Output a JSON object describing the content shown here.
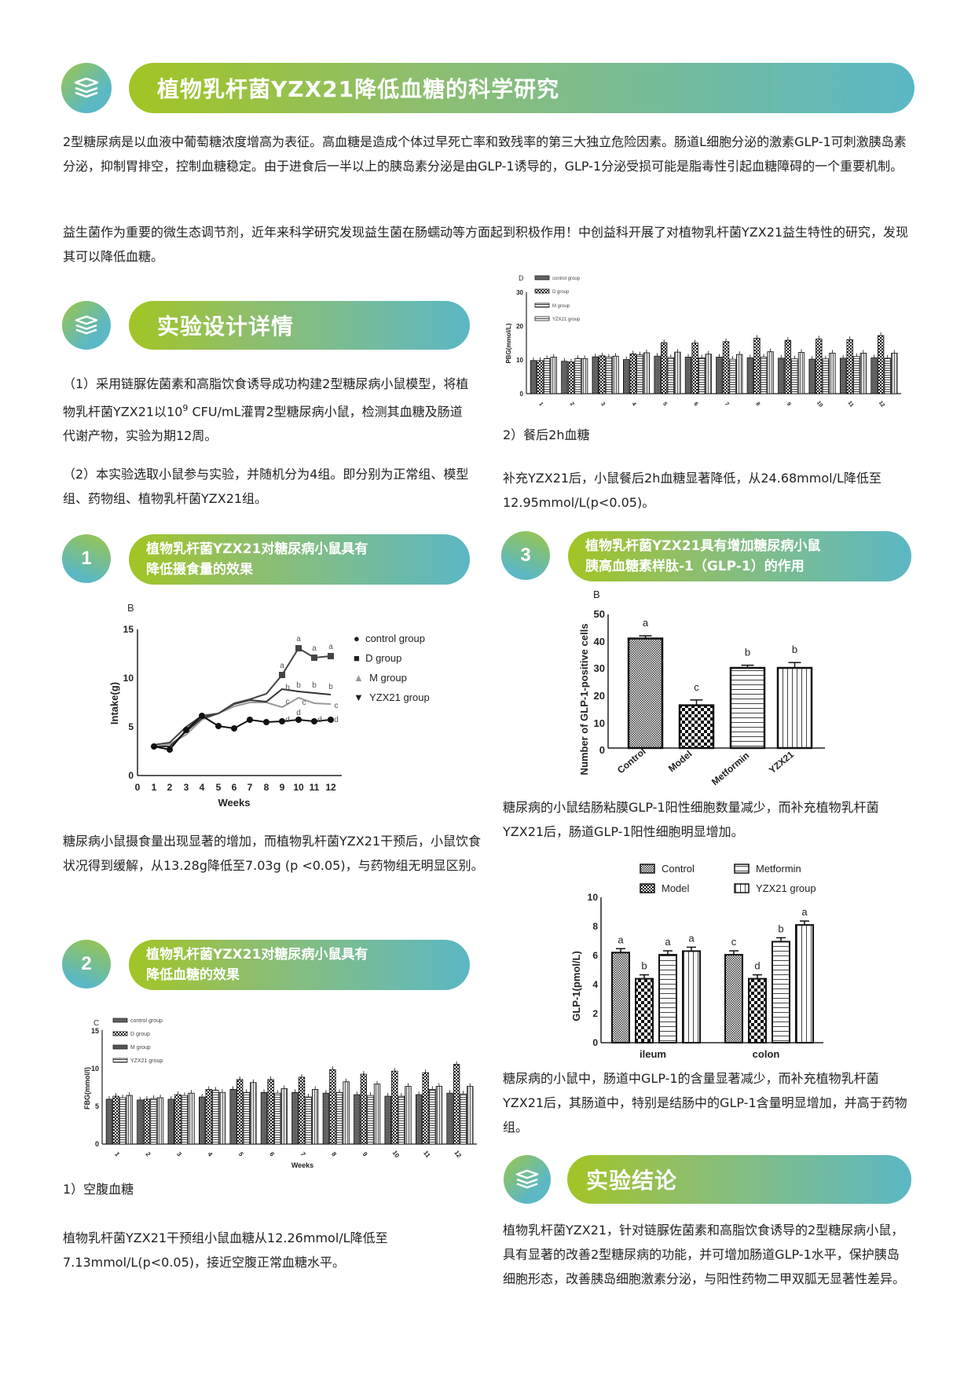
{
  "header": {
    "title": "植物乳杆菌YZX21降低血糖的科学研究",
    "icon": "books-icon"
  },
  "intro": {
    "paragraph1": "2型糖尿病是以血液中葡萄糖浓度增高为表征。高血糖是造成个体过早死亡率和致残率的第三大独立危险因素。肠道L细胞分泌的激素GLP-1可刺激胰岛素分泌，抑制胃排空，控制血糖稳定。由于进食后一半以上的胰岛素分泌是由GLP-1诱导的，GLP-1分泌受损可能是脂毒性引起血糖障碍的一个重要机制。",
    "paragraph2": "益生菌作为重要的微生态调节剂，近年来科学研究发现益生菌在肠蠕动等方面起到积极作用！中创益科开展了对植物乳杆菌YZX21益生特性的研究，发现其可以降低血糖。"
  },
  "design": {
    "title": "实验设计详情",
    "item1_a": "（1）采用链脲佐菌素和高脂饮食诱导成功构建2型糖尿病小鼠模型，将植物乳杆菌YZX21以10",
    "item1_sup": "9",
    "item1_b": " CFU/mL灌胃2型糖尿病小鼠，检测其血糖及肠道代谢产物，实验为期12周。",
    "item2": "（2）本实验选取小鼠参与实验，并随机分为4组。即分别为正常组、模型组、药物组、植物乳杆菌YZX21组。"
  },
  "section1": {
    "number": "1",
    "title_line1": "植物乳杆菌YZX21对糖尿病小鼠具有",
    "title_line2": "降低摄食量的效果",
    "text": "糖尿病小鼠摄食量出现显著的增加，而植物乳杆菌YZX21干预后，小鼠饮食状况得到缓解，从13.28g降低至7.03g (p <0.05)，与药物组无明显区别。"
  },
  "section2": {
    "number": "2",
    "title_line1": "植物乳杆菌YZX21对糖尿病小鼠具有",
    "title_line2": "降低血糖的效果",
    "caption": "1）空腹血糖",
    "text": "植物乳杆菌YZX21干预组小鼠血糖从12.26mmol/L降低至7.13mmol/L(p<0.05)，接近空腹正常血糖水平。"
  },
  "pbg": {
    "caption": "2）餐后2h血糖",
    "text": "补充YZX21后，小鼠餐后2h血糖显著降低，从24.68mmol/L降低至12.95mmol/L(p<0.05)。"
  },
  "section3": {
    "number": "3",
    "title_line1": "植物乳杆菌YZX21具有增加糖尿病小鼠",
    "title_line2": "胰高血糖素样肽-1（GLP-1）的作用",
    "text1": "糖尿病的小鼠结肠粘膜GLP-1阳性细胞数量减少，而补充植物乳杆菌YZX21后，肠道GLP-1阳性细胞明显增加。",
    "text2": "糖尿病的小鼠中，肠道中GLP-1的含量显著减少，而补充植物乳杆菌YZX21后，其肠道中，特别是结肠中的GLP-1含量明显增加，并高于药物组。"
  },
  "conclusion": {
    "title": "实验结论",
    "text": "植物乳杆菌YZX21，针对链脲佐菌素和高脂饮食诱导的2型糖尿病小鼠，具有显著的改善2型糖尿病的功能，并可增加肠道GLP-1水平，保护胰岛细胞形态，改善胰岛细胞激素分泌，与阳性药物二甲双胍无显著性差异。"
  },
  "colors": {
    "gradient_start": "#a2c523",
    "gradient_end": "#5bb7c5"
  },
  "chart_data": [
    {
      "id": "intake",
      "type": "line",
      "panel_label": "B",
      "xlabel": "Weeks",
      "ylabel": "Intake(g)",
      "ylim": [
        0,
        15
      ],
      "yticks": [
        0,
        5,
        10,
        15
      ],
      "x": [
        1,
        2,
        3,
        4,
        5,
        6,
        7,
        8,
        9,
        10,
        11,
        12
      ],
      "series": [
        {
          "name": "control group",
          "values": [
            3.0,
            2.7,
            4.7,
            6.1,
            5.1,
            4.8,
            5.7,
            5.5,
            5.6,
            5.7,
            5.6,
            5.7
          ]
        },
        {
          "name": "D group",
          "values": [
            3.2,
            3.4,
            5.0,
            6.1,
            6.4,
            7.4,
            7.8,
            8.4,
            10.3,
            13.1,
            12.1,
            12.3
          ]
        },
        {
          "name": "M group",
          "values": [
            2.9,
            3.2,
            4.2,
            5.7,
            6.3,
            7.1,
            7.5,
            7.5,
            7.0,
            8.0,
            7.4,
            7.3
          ]
        },
        {
          "name": "YZX21 group",
          "values": [
            3.0,
            3.0,
            4.5,
            5.9,
            6.4,
            7.3,
            7.7,
            7.6,
            8.9,
            8.7,
            8.5,
            8.3
          ]
        }
      ],
      "annotations": [
        "a",
        "a",
        "a",
        "a",
        "a",
        "a",
        "a",
        "a",
        "a",
        "a",
        "a",
        "a",
        "b",
        "b",
        "b",
        "ab",
        "c",
        "b",
        "b",
        "b",
        "b",
        "c",
        "c",
        "c",
        "c",
        "d",
        "d",
        "d",
        "d"
      ],
      "legend_position": "right"
    },
    {
      "id": "fbg",
      "type": "bar",
      "panel_label": "C",
      "xlabel": "Weeks",
      "ylabel": "FBG(mmol/l)",
      "ylim": [
        0,
        15
      ],
      "yticks": [
        0,
        5,
        10,
        15
      ],
      "categories": [
        "1",
        "2",
        "3",
        "4",
        "5",
        "6",
        "7",
        "8",
        "9",
        "10",
        "11",
        "12"
      ],
      "series": [
        {
          "name": "control group",
          "values": [
            5.9,
            5.8,
            5.9,
            6.2,
            7.2,
            6.8,
            6.8,
            6.7,
            6.5,
            6.3,
            6.5,
            6.7
          ]
        },
        {
          "name": "D group",
          "values": [
            6.3,
            5.9,
            6.5,
            7.2,
            8.5,
            8.5,
            8.8,
            9.8,
            9.2,
            9.6,
            9.4,
            10.5
          ]
        },
        {
          "name": "M group",
          "values": [
            6.1,
            6.0,
            6.4,
            7.1,
            6.8,
            6.7,
            6.2,
            6.8,
            6.4,
            6.3,
            7.2,
            6.6
          ]
        },
        {
          "name": "YZX21 group",
          "values": [
            6.4,
            6.1,
            6.7,
            6.8,
            8.1,
            7.3,
            7.2,
            8.2,
            7.9,
            7.6,
            7.6,
            7.6
          ]
        }
      ],
      "legend_position": "top-left"
    },
    {
      "id": "pbg",
      "type": "bar",
      "panel_label": "D",
      "xlabel": "",
      "ylabel": "PBG(mmol/L)",
      "ylim": [
        0,
        30
      ],
      "yticks": [
        0,
        10,
        20,
        30
      ],
      "categories": [
        "1",
        "2",
        "3",
        "4",
        "5",
        "6",
        "7",
        "8",
        "9",
        "10",
        "11",
        "12"
      ],
      "series": [
        {
          "name": "control group",
          "values": [
            9.8,
            9.6,
            10.9,
            10.1,
            11.1,
            10.8,
            10.8,
            10.6,
            10.5,
            10.2,
            10.5,
            10.6
          ]
        },
        {
          "name": "D group",
          "values": [
            9.8,
            9.4,
            11.2,
            11.8,
            15.1,
            15.0,
            15.4,
            16.4,
            15.8,
            16.2,
            16.0,
            17.2
          ]
        },
        {
          "name": "M group",
          "values": [
            10.4,
            10.4,
            10.8,
            11.5,
            10.7,
            10.6,
            10.2,
            10.8,
            10.3,
            10.3,
            11.0,
            10.5
          ]
        },
        {
          "name": "YZX21 group",
          "values": [
            10.8,
            10.4,
            11.1,
            12.1,
            12.3,
            11.7,
            11.6,
            12.4,
            12.2,
            12.0,
            12.0,
            12.0
          ]
        }
      ],
      "legend_position": "top-left"
    },
    {
      "id": "glp1_cells",
      "type": "bar",
      "panel_label": "B",
      "xlabel": "",
      "ylabel": "Number of GLP-1-positive cells",
      "ylim": [
        0,
        50
      ],
      "yticks": [
        0,
        10,
        20,
        30,
        40,
        50
      ],
      "categories": [
        "Control",
        "Model",
        "Metformin",
        "YZX21"
      ],
      "values": [
        41,
        16,
        30,
        30
      ],
      "errors": [
        1,
        2,
        1,
        2
      ],
      "labels": [
        "a",
        "c",
        "b",
        "b"
      ]
    },
    {
      "id": "glp1_level",
      "type": "bar",
      "xlabel": "",
      "ylabel": "GLP-1(pmol/L)",
      "ylim": [
        0,
        10
      ],
      "yticks": [
        0,
        2,
        4,
        6,
        8,
        10
      ],
      "categories": [
        "ileum",
        "colon"
      ],
      "series": [
        {
          "name": "Control",
          "values": [
            6.2,
            6.05
          ],
          "labels": [
            "a",
            "c"
          ]
        },
        {
          "name": "Model",
          "values": [
            4.4,
            4.4
          ],
          "labels": [
            "b",
            "d"
          ]
        },
        {
          "name": "Metformin",
          "values": [
            6.05,
            6.95
          ],
          "labels": [
            "a",
            "b"
          ]
        },
        {
          "name": "YZX21 group",
          "values": [
            6.3,
            8.1
          ],
          "labels": [
            "a",
            "a"
          ]
        }
      ],
      "legend_position": "top"
    }
  ]
}
